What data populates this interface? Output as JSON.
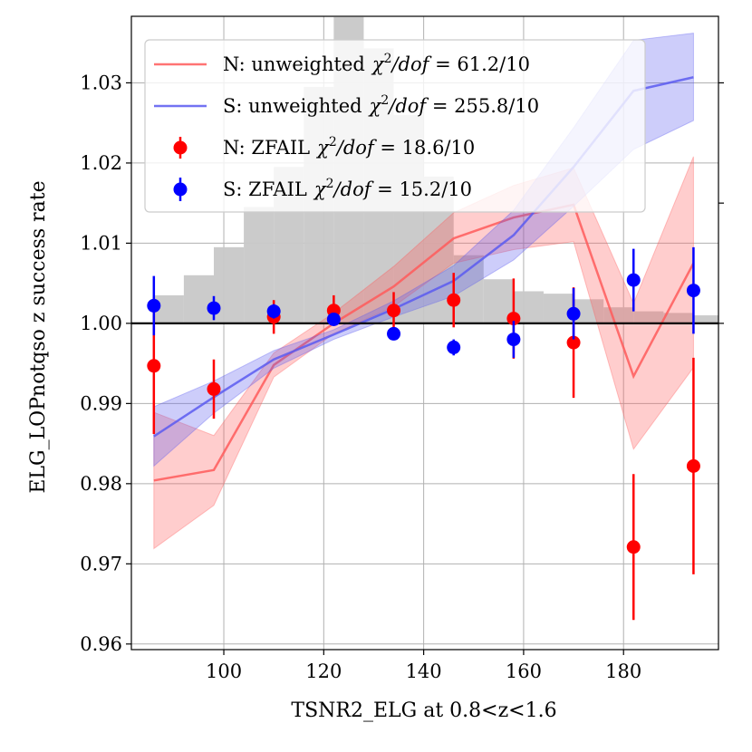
{
  "chart_data": {
    "type": "line",
    "xlabel": "TSNR2_ELG at 0.8<z<1.6",
    "ylabel": "ELG_LOPnotqso z success rate",
    "xlim": [
      81.5,
      199
    ],
    "ylim": [
      0.9593,
      1.0383
    ],
    "xticks": [
      100,
      120,
      140,
      160,
      180
    ],
    "yticks": [
      0.96,
      0.97,
      0.98,
      0.99,
      1.0,
      1.01,
      1.02,
      1.03
    ],
    "ytick_labels": [
      "0.96",
      "0.97",
      "0.98",
      "0.99",
      "1.00",
      "1.01",
      "1.02",
      "1.03"
    ],
    "reference_line": 1.0,
    "grid": true,
    "legend_position": "top-center",
    "histogram": {
      "edges": [
        80,
        86,
        92,
        98,
        104,
        110,
        116,
        122,
        128,
        134,
        140,
        146,
        152,
        158,
        164,
        170,
        176,
        182,
        188,
        194,
        200
      ],
      "values": [
        1.0,
        1.0035,
        1.006,
        1.0095,
        1.0145,
        1.0195,
        1.0295,
        1.0382,
        1.0343,
        1.026,
        1.0183,
        1.0085,
        1.0055,
        1.004,
        1.0037,
        1.003,
        1.002,
        1.0015,
        1.0013,
        1.001
      ],
      "color": "#c8c8c8"
    },
    "series": [
      {
        "name": "N: unweighted",
        "label": "N: unweighted",
        "chi2": "61.2/10",
        "kind": "band",
        "color": "#ff5a5a",
        "x": [
          86,
          98,
          110,
          122,
          134,
          146,
          158,
          170,
          182,
          194
        ],
        "y": [
          0.9804,
          0.9817,
          0.9948,
          1.0,
          1.0046,
          1.0106,
          1.0132,
          1.0148,
          0.9934,
          1.0075
        ],
        "lower": [
          0.9719,
          0.9773,
          0.9933,
          0.9987,
          1.0021,
          1.0075,
          1.0092,
          1.0102,
          0.9843,
          0.9945
        ],
        "upper": [
          0.9889,
          0.986,
          0.9963,
          1.0013,
          1.0071,
          1.0138,
          1.0172,
          1.0194,
          1.0025,
          1.0208
        ]
      },
      {
        "name": "S: unweighted",
        "label": "S: unweighted",
        "chi2": "255.8/10",
        "kind": "band",
        "color": "#5a5af0",
        "x": [
          86,
          98,
          110,
          122,
          134,
          146,
          158,
          170,
          182,
          194
        ],
        "y": [
          0.9859,
          0.9908,
          0.9955,
          0.9986,
          1.0018,
          1.0053,
          1.011,
          1.0195,
          1.029,
          1.0307
        ],
        "lower": [
          0.9822,
          0.9888,
          0.9944,
          0.998,
          1.0008,
          1.0034,
          1.0079,
          1.0146,
          1.0217,
          1.0253
        ],
        "upper": [
          0.9896,
          0.9928,
          0.9966,
          0.9992,
          1.0028,
          1.0072,
          1.0141,
          1.0244,
          1.0353,
          1.0362
        ]
      },
      {
        "name": "N: ZFAIL",
        "label": "N: ZFAIL",
        "chi2": "18.6/10",
        "kind": "errorbar",
        "color": "#ff0000",
        "x": [
          86,
          98,
          110,
          122,
          134,
          146,
          158,
          170,
          182,
          194
        ],
        "y": [
          0.9947,
          0.9918,
          1.0008,
          1.0016,
          1.0016,
          1.0029,
          1.0006,
          0.9976,
          0.9721,
          0.9822
        ],
        "err": [
          0.0085,
          0.0037,
          0.0021,
          0.0019,
          0.0023,
          0.0034,
          0.005,
          0.0069,
          0.0091,
          0.0135
        ]
      },
      {
        "name": "S: ZFAIL",
        "label": "S: ZFAIL",
        "chi2": "15.2/10",
        "kind": "errorbar",
        "color": "#0000ff",
        "x": [
          86,
          98,
          110,
          122,
          134,
          146,
          158,
          170,
          182,
          194
        ],
        "y": [
          1.0022,
          1.0019,
          1.0015,
          1.0005,
          0.9987,
          0.997,
          0.998,
          1.0012,
          1.0054,
          1.0041
        ],
        "err": [
          0.0037,
          0.0015,
          0.0009,
          0.0007,
          0.0006,
          0.001,
          0.0023,
          0.0032,
          0.0039,
          0.0054
        ]
      }
    ]
  }
}
